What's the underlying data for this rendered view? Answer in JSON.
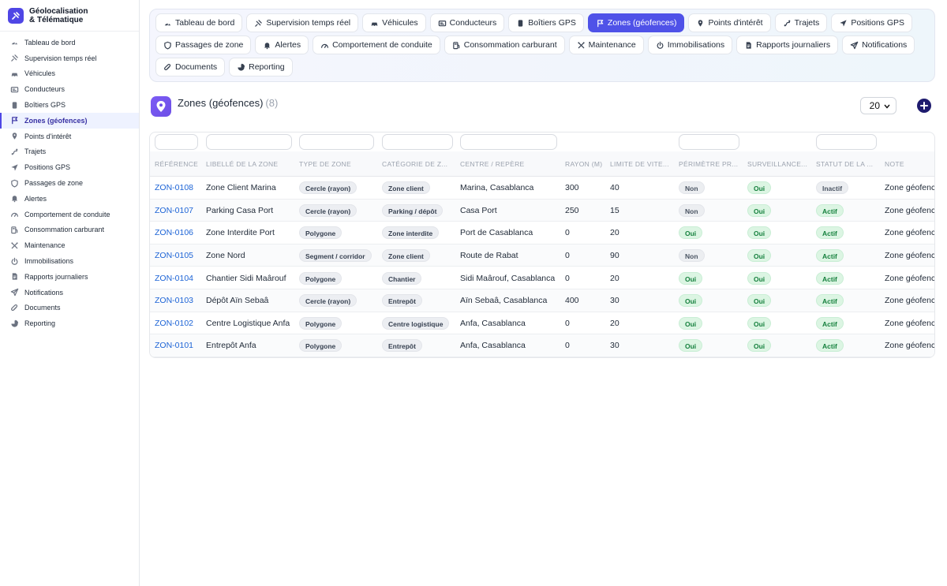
{
  "brand": {
    "line1": "Géolocalisation",
    "line2": "& Télématique"
  },
  "sidebar": {
    "items": [
      {
        "label": "Tableau de bord",
        "icon": "dashboard-icon"
      },
      {
        "label": "Supervision temps réel",
        "icon": "satellite-icon"
      },
      {
        "label": "Véhicules",
        "icon": "car-icon"
      },
      {
        "label": "Conducteurs",
        "icon": "id-card-icon"
      },
      {
        "label": "Boîtiers GPS",
        "icon": "device-icon"
      },
      {
        "label": "Zones (géofences)",
        "icon": "geofence-icon",
        "active": true
      },
      {
        "label": "Points d'intérêt",
        "icon": "pin-icon"
      },
      {
        "label": "Trajets",
        "icon": "route-icon"
      },
      {
        "label": "Positions GPS",
        "icon": "navigation-icon"
      },
      {
        "label": "Passages de zone",
        "icon": "shield-icon"
      },
      {
        "label": "Alertes",
        "icon": "bell-icon"
      },
      {
        "label": "Comportement de conduite",
        "icon": "gauge-icon"
      },
      {
        "label": "Consommation carburant",
        "icon": "fuel-icon"
      },
      {
        "label": "Maintenance",
        "icon": "tools-icon"
      },
      {
        "label": "Immobilisations",
        "icon": "power-icon"
      },
      {
        "label": "Rapports journaliers",
        "icon": "report-icon"
      },
      {
        "label": "Notifications",
        "icon": "send-icon"
      },
      {
        "label": "Documents",
        "icon": "paperclip-icon"
      },
      {
        "label": "Reporting",
        "icon": "pie-chart-icon"
      }
    ]
  },
  "tabs": [
    {
      "label": "Tableau de bord",
      "icon": "dashboard-icon"
    },
    {
      "label": "Supervision temps réel",
      "icon": "satellite-icon"
    },
    {
      "label": "Véhicules",
      "icon": "car-icon"
    },
    {
      "label": "Conducteurs",
      "icon": "id-card-icon"
    },
    {
      "label": "Boîtiers GPS",
      "icon": "device-icon"
    },
    {
      "label": "Zones (géofences)",
      "icon": "geofence-icon",
      "active": true
    },
    {
      "label": "Points d'intérêt",
      "icon": "pin-icon"
    },
    {
      "label": "Trajets",
      "icon": "route-icon"
    },
    {
      "label": "Positions GPS",
      "icon": "navigation-icon"
    },
    {
      "label": "Passages de zone",
      "icon": "shield-icon"
    },
    {
      "label": "Alertes",
      "icon": "bell-icon"
    },
    {
      "label": "Comportement de conduite",
      "icon": "gauge-icon"
    },
    {
      "label": "Consommation carburant",
      "icon": "fuel-icon"
    },
    {
      "label": "Maintenance",
      "icon": "tools-icon"
    },
    {
      "label": "Immobilisations",
      "icon": "power-icon"
    },
    {
      "label": "Rapports journaliers",
      "icon": "report-icon"
    },
    {
      "label": "Notifications",
      "icon": "send-icon"
    },
    {
      "label": "Documents",
      "icon": "paperclip-icon"
    },
    {
      "label": "Reporting",
      "icon": "pie-chart-icon"
    }
  ],
  "header": {
    "title": "Zones (géofences)",
    "count": "(8)",
    "per_page": "20"
  },
  "table": {
    "columns": [
      "RÉFÉRENCE",
      "LIBELLÉ DE LA ZONE",
      "TYPE DE ZONE",
      "CATÉGORIE DE Z...",
      "CENTRE / REPÈRE",
      "RAYON (M)",
      "LIMITE DE VITE...",
      "PÉRIMÈTRE PR...",
      "SURVEILLANCE...",
      "STATUT DE LA ...",
      "NOTE"
    ],
    "rows": [
      {
        "ref": "ZON-0108",
        "label": "Zone Client Marina",
        "type": "Cercle (rayon)",
        "category": "Zone client",
        "center": "Marina, Casablanca",
        "radius": "300",
        "speed": "40",
        "perimeter": "Non",
        "surveillance": "Oui",
        "status": "Inactif",
        "note": "Zone géofence"
      },
      {
        "ref": "ZON-0107",
        "label": "Parking Casa Port",
        "type": "Cercle (rayon)",
        "category": "Parking / dépôt",
        "center": "Casa Port",
        "radius": "250",
        "speed": "15",
        "perimeter": "Non",
        "surveillance": "Oui",
        "status": "Actif",
        "note": "Zone géofence"
      },
      {
        "ref": "ZON-0106",
        "label": "Zone Interdite Port",
        "type": "Polygone",
        "category": "Zone interdite",
        "center": "Port de Casablanca",
        "radius": "0",
        "speed": "20",
        "perimeter": "Oui",
        "surveillance": "Oui",
        "status": "Actif",
        "note": "Zone géofence"
      },
      {
        "ref": "ZON-0105",
        "label": "Zone Nord",
        "type": "Segment / corridor",
        "category": "Zone client",
        "center": "Route de Rabat",
        "radius": "0",
        "speed": "90",
        "perimeter": "Non",
        "surveillance": "Oui",
        "status": "Actif",
        "note": "Zone géofence"
      },
      {
        "ref": "ZON-0104",
        "label": "Chantier Sidi Maârouf",
        "type": "Polygone",
        "category": "Chantier",
        "center": "Sidi Maârouf, Casablanca",
        "radius": "0",
        "speed": "20",
        "perimeter": "Oui",
        "surveillance": "Oui",
        "status": "Actif",
        "note": "Zone géofence"
      },
      {
        "ref": "ZON-0103",
        "label": "Dépôt Aïn Sebaâ",
        "type": "Cercle (rayon)",
        "category": "Entrepôt",
        "center": "Aïn Sebaâ, Casablanca",
        "radius": "400",
        "speed": "30",
        "perimeter": "Oui",
        "surveillance": "Oui",
        "status": "Actif",
        "note": "Zone géofence"
      },
      {
        "ref": "ZON-0102",
        "label": "Centre Logistique Anfa",
        "type": "Polygone",
        "category": "Centre logistique",
        "center": "Anfa, Casablanca",
        "radius": "0",
        "speed": "20",
        "perimeter": "Oui",
        "surveillance": "Oui",
        "status": "Actif",
        "note": "Zone géofence"
      },
      {
        "ref": "ZON-0101",
        "label": "Entrepôt Anfa",
        "type": "Polygone",
        "category": "Entrepôt",
        "center": "Anfa, Casablanca",
        "radius": "0",
        "speed": "30",
        "perimeter": "Oui",
        "surveillance": "Oui",
        "status": "Actif",
        "note": "Zone géofence"
      }
    ]
  },
  "colors": {
    "accent": "#4f52e8",
    "link": "#1d64d6",
    "success_bg": "#dcf5e3",
    "success_text": "#15803d"
  }
}
